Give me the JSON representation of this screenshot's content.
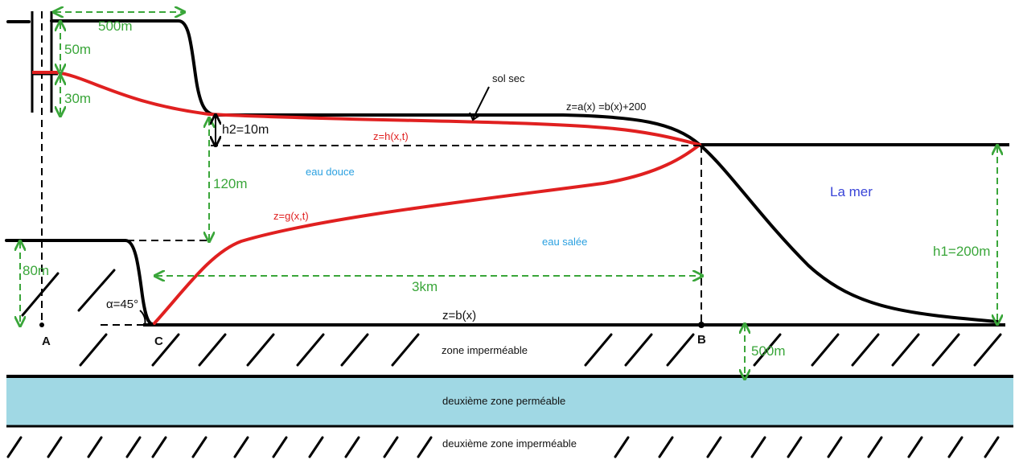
{
  "dimensions": {
    "d500m_top": "500m",
    "d50m": "50m",
    "d30m": "30m",
    "h2": "h2=10m",
    "d120m": "120m",
    "d80m": "80m",
    "alpha": "α=45°",
    "d3km": "3km",
    "h1": "h1=200m",
    "d500m_bottom": "500m"
  },
  "curves": {
    "surface": "z=a(x) =b(x)+200",
    "h": "z=h(x,t)",
    "g": "z=g(x,t)",
    "b": "z=b(x)"
  },
  "regions": {
    "dry_soil": "sol sec",
    "fresh_water": "eau douce",
    "salt_water": "eau salée",
    "sea": "La mer",
    "impermeable": "zone imperméable",
    "second_permeable": "deuxième zone perméable",
    "second_impermeable": "deuxième zone imperméable"
  },
  "points": {
    "A": "A",
    "C": "C",
    "B": "B"
  },
  "colors": {
    "dimension": "#3aa63a",
    "interface": "#e02020",
    "water_label": "#2aa0e0",
    "sea_label": "#3a45d8",
    "permeable_layer": "#a0d8e4"
  }
}
